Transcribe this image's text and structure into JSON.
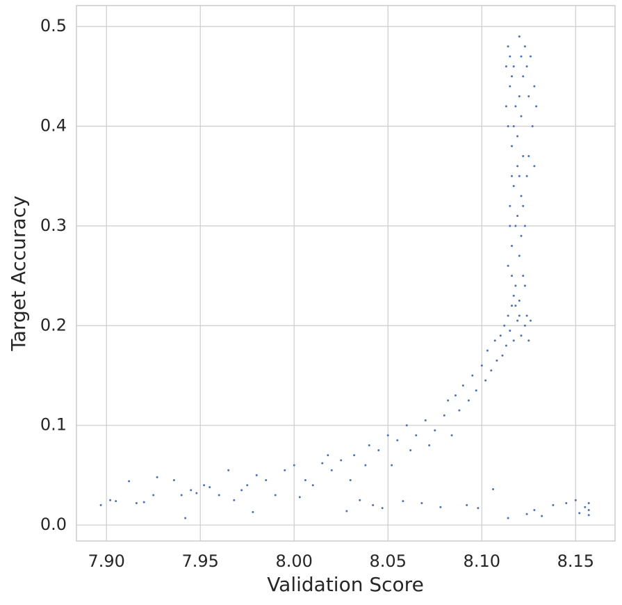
{
  "chart_data": {
    "type": "scatter",
    "xlabel": "Validation Score",
    "ylabel": "Target Accuracy",
    "color": "#4c72b0",
    "grid": true,
    "xlim": [
      7.884,
      8.171
    ],
    "ylim": [
      -0.016,
      0.521
    ],
    "xticks": [
      {
        "value": 7.9,
        "label": "7.90"
      },
      7.95,
      {
        "value": 8,
        "label": "8.00"
      },
      8.05,
      {
        "value": 8.1,
        "label": "8.10"
      },
      8.15
    ],
    "yticks": [
      {
        "value": 0,
        "label": "0.0"
      },
      0.1,
      0.2,
      0.3,
      0.4,
      0.5
    ],
    "x": [
      7.897,
      7.902,
      7.905,
      7.912,
      7.916,
      7.92,
      7.925,
      7.927,
      7.936,
      7.94,
      7.942,
      7.945,
      7.948,
      7.952,
      7.955,
      7.96,
      7.965,
      7.968,
      7.972,
      7.975,
      7.978,
      7.98,
      7.985,
      7.99,
      7.995,
      8.0,
      8.003,
      8.006,
      8.01,
      8.015,
      8.018,
      8.02,
      8.025,
      8.028,
      8.03,
      8.032,
      8.035,
      8.038,
      8.04,
      8.042,
      8.045,
      8.047,
      8.05,
      8.052,
      8.055,
      8.058,
      8.06,
      8.062,
      8.065,
      8.068,
      8.07,
      8.072,
      8.075,
      8.078,
      8.08,
      8.082,
      8.084,
      8.086,
      8.088,
      8.09,
      8.092,
      8.093,
      8.095,
      8.097,
      8.098,
      8.1,
      8.102,
      8.103,
      8.105,
      8.106,
      8.107,
      8.108,
      8.11,
      8.111,
      8.112,
      8.113,
      8.114,
      8.114,
      8.115,
      8.116,
      8.117,
      8.118,
      8.119,
      8.12,
      8.121,
      8.122,
      8.123,
      8.124,
      8.125,
      8.126,
      8.124,
      8.128,
      8.132,
      8.138,
      8.145,
      8.15,
      8.152,
      8.155,
      8.157,
      8.157,
      8.157,
      8.114,
      8.116,
      8.118,
      8.115,
      8.117,
      8.119,
      8.116,
      8.114,
      8.118,
      8.115,
      8.117,
      8.114,
      8.12,
      8.121,
      8.119,
      8.121,
      8.12,
      8.122,
      8.119,
      8.121,
      8.12,
      8.122,
      8.121,
      8.12,
      8.116,
      8.117,
      8.115,
      8.116,
      8.117,
      8.116,
      8.124,
      8.126,
      8.128,
      8.129,
      8.127,
      8.125,
      8.123,
      8.125,
      8.124,
      8.128,
      8.123,
      8.122,
      8.113,
      8.113,
      8.115,
      8.123,
      8.12,
      8.118
    ],
    "values": [
      0.02,
      0.025,
      0.024,
      0.044,
      0.022,
      0.023,
      0.03,
      0.048,
      0.045,
      0.03,
      0.007,
      0.035,
      0.032,
      0.04,
      0.038,
      0.03,
      0.055,
      0.025,
      0.035,
      0.04,
      0.013,
      0.05,
      0.045,
      0.03,
      0.055,
      0.06,
      0.028,
      0.045,
      0.04,
      0.062,
      0.07,
      0.055,
      0.065,
      0.014,
      0.045,
      0.07,
      0.025,
      0.06,
      0.08,
      0.02,
      0.075,
      0.017,
      0.09,
      0.06,
      0.085,
      0.024,
      0.1,
      0.075,
      0.09,
      0.022,
      0.105,
      0.08,
      0.095,
      0.018,
      0.11,
      0.125,
      0.09,
      0.13,
      0.115,
      0.14,
      0.02,
      0.125,
      0.15,
      0.135,
      0.017,
      0.16,
      0.145,
      0.175,
      0.155,
      0.036,
      0.185,
      0.165,
      0.19,
      0.17,
      0.2,
      0.18,
      0.007,
      0.21,
      0.195,
      0.22,
      0.185,
      0.24,
      0.205,
      0.225,
      0.19,
      0.25,
      0.2,
      0.21,
      0.185,
      0.205,
      0.011,
      0.015,
      0.009,
      0.02,
      0.022,
      0.025,
      0.012,
      0.018,
      0.01,
      0.022,
      0.015,
      0.26,
      0.28,
      0.3,
      0.32,
      0.34,
      0.36,
      0.38,
      0.4,
      0.42,
      0.44,
      0.46,
      0.48,
      0.27,
      0.29,
      0.31,
      0.33,
      0.35,
      0.37,
      0.39,
      0.41,
      0.43,
      0.45,
      0.47,
      0.49,
      0.25,
      0.23,
      0.3,
      0.35,
      0.4,
      0.45,
      0.46,
      0.47,
      0.44,
      0.42,
      0.4,
      0.43,
      0.48,
      0.37,
      0.35,
      0.36,
      0.3,
      0.32,
      0.42,
      0.46,
      0.47,
      0.24,
      0.21,
      0.22
    ]
  }
}
